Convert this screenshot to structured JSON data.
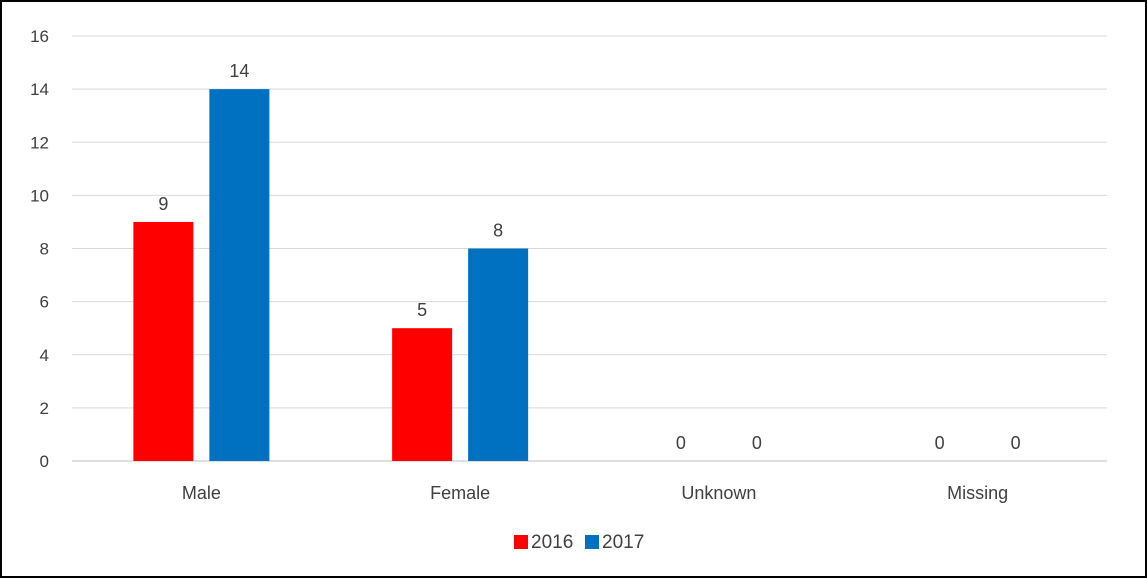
{
  "chart_data": {
    "type": "bar",
    "title": "",
    "xlabel": "",
    "ylabel": "",
    "categories": [
      "Male",
      "Female",
      "Unknown",
      "Missing"
    ],
    "series": [
      {
        "name": "2016",
        "color": "#ff0000",
        "values": [
          9,
          5,
          0,
          0
        ]
      },
      {
        "name": "2017",
        "color": "#0070c0",
        "values": [
          14,
          8,
          0,
          0
        ]
      }
    ],
    "ylim": [
      0,
      16
    ],
    "yticks": [
      0,
      2,
      4,
      6,
      8,
      10,
      12,
      14,
      16
    ],
    "grid": true,
    "data_labels": true,
    "legend": "bottom-center"
  }
}
